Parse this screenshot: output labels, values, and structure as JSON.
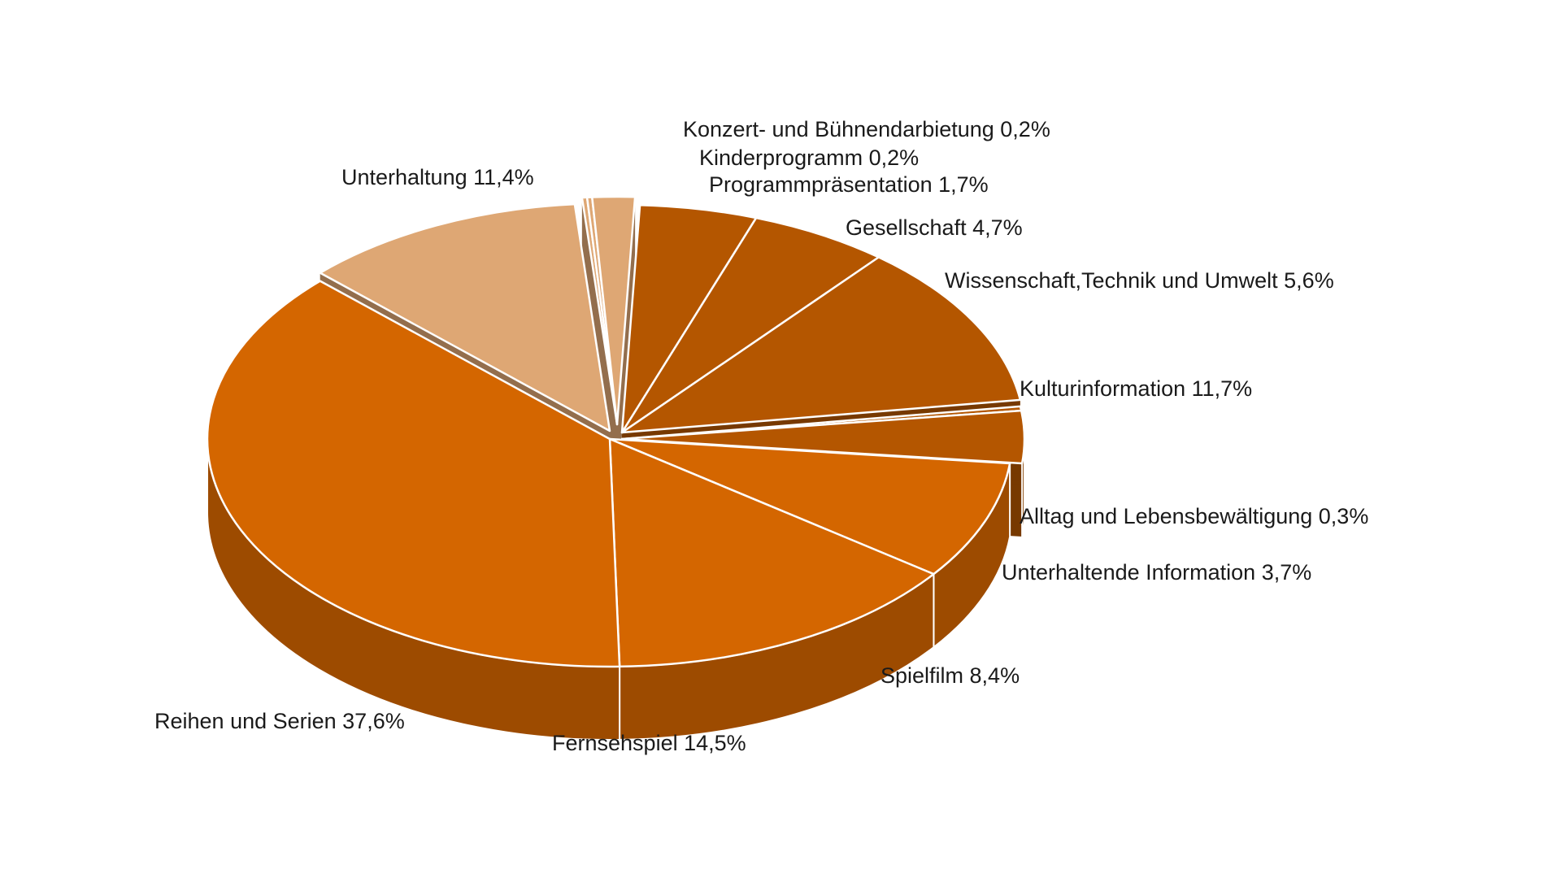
{
  "chart_data": {
    "type": "pie",
    "style": "3d-exploded",
    "title": "",
    "slices": [
      {
        "label": "Konzert- und Bühnendarbietung",
        "value": 0.2,
        "display": "0,2%",
        "color": "#dea774"
      },
      {
        "label": "Kinderprogramm",
        "value": 0.2,
        "display": "0,2%",
        "color": "#dea774"
      },
      {
        "label": "Programmpräsentation",
        "value": 1.7,
        "display": "1,7%",
        "color": "#dea774"
      },
      {
        "label": "Gesellschaft",
        "value": 4.7,
        "display": "4,7%",
        "color": "#b45600"
      },
      {
        "label": "Wissenschaft,Technik und Umwelt",
        "value": 5.6,
        "display": "5,6%",
        "color": "#b45600"
      },
      {
        "label": "Kulturinformation",
        "value": 11.7,
        "display": "11,7%",
        "color": "#b45600"
      },
      {
        "label": "Alltag und Lebensbewältigung",
        "value": 0.3,
        "display": "0,3%",
        "color": "#b45600"
      },
      {
        "label": "Unterhaltende Information",
        "value": 3.7,
        "display": "3,7%",
        "color": "#b45600"
      },
      {
        "label": "Spielfilm",
        "value": 8.4,
        "display": "8,4%",
        "color": "#d46600"
      },
      {
        "label": "Fernsehspiel",
        "value": 14.5,
        "display": "14,5%",
        "color": "#d46600"
      },
      {
        "label": "Reihen und Serien",
        "value": 37.6,
        "display": "37,6%",
        "color": "#d46600"
      },
      {
        "label": "Unterhaltung",
        "value": 11.4,
        "display": "11,4%",
        "color": "#dea774"
      }
    ]
  }
}
